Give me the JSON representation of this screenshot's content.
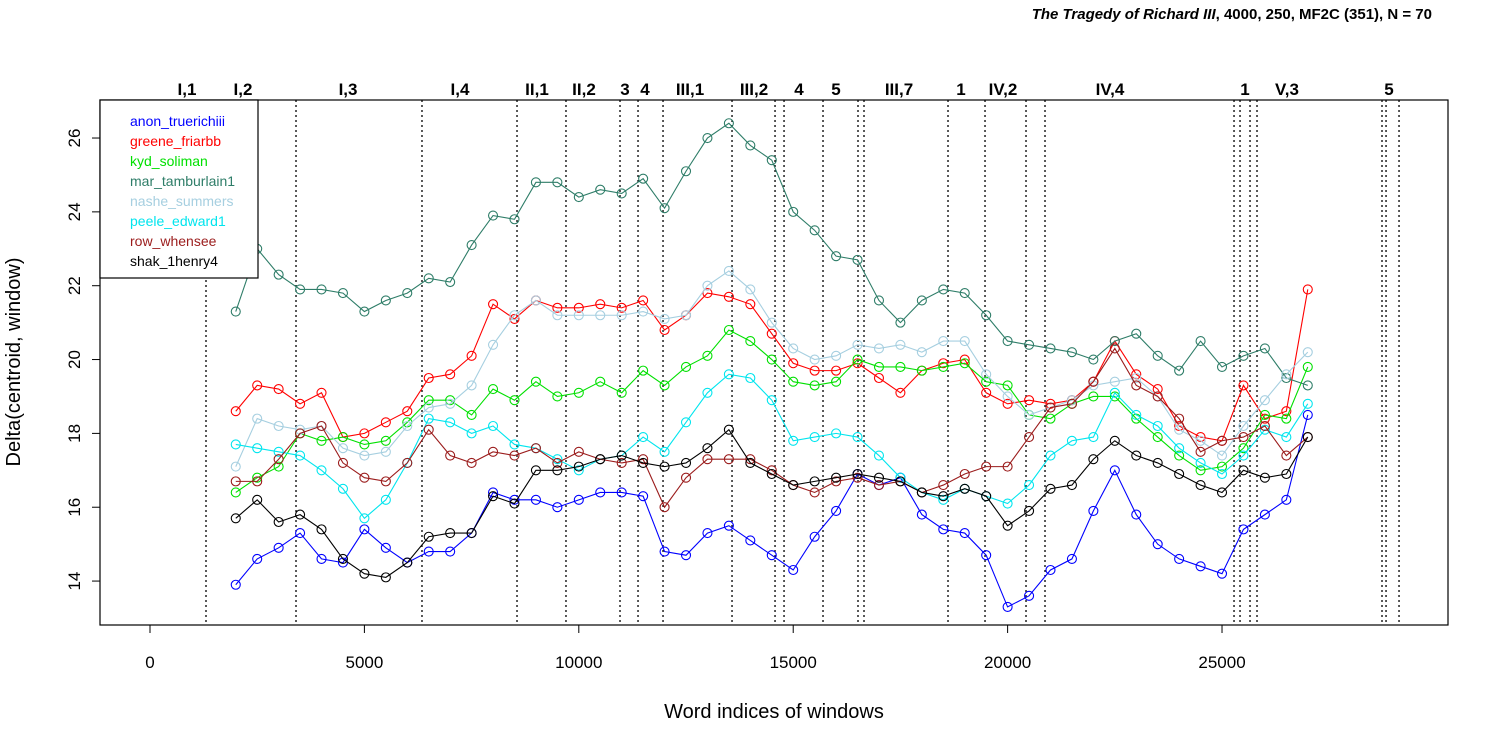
{
  "chart_data": {
    "type": "line",
    "title": {
      "italic": "The Tragedy of Richard III",
      "rest": ", 4000, 250, MF2C (351), N = 70"
    },
    "x_label": "Word indices of windows",
    "y_label": "Delta(centroid, window)",
    "xlim": [
      -1166,
      30270
    ],
    "ylim": [
      12.81,
      27.03
    ],
    "xticks": [
      0,
      5000,
      10000,
      15000,
      20000,
      25000
    ],
    "yticks": [
      14,
      16,
      18,
      20,
      22,
      24,
      26
    ],
    "legend": "top-left",
    "markers": "open-circle",
    "x": [
      2000,
      2500,
      3000,
      3500,
      4000,
      4500,
      5000,
      5500,
      6000,
      6500,
      7000,
      7500,
      8000,
      8500,
      9000,
      9500,
      10000,
      10500,
      11000,
      11500,
      12000,
      12500,
      13000,
      13500,
      14000,
      14500,
      15000,
      15500,
      16000,
      16500,
      17000,
      17500,
      18000,
      18500,
      19000,
      19500,
      20000,
      20500,
      21000,
      21500,
      22000,
      22500,
      23000,
      23500,
      24000,
      24500,
      25000,
      25500,
      26000,
      26500,
      27000
    ],
    "series": [
      {
        "name": "anon_truerichiii",
        "color": "#0000ff",
        "values": [
          13.9,
          14.6,
          14.9,
          15.3,
          14.6,
          14.5,
          15.4,
          14.9,
          14.5,
          14.8,
          14.8,
          15.3,
          16.4,
          16.2,
          16.2,
          16.0,
          16.2,
          16.4,
          16.4,
          16.3,
          14.8,
          14.7,
          15.3,
          15.5,
          15.1,
          14.7,
          14.3,
          15.2,
          15.9,
          16.9,
          16.6,
          16.8,
          15.8,
          15.4,
          15.3,
          14.7,
          13.3,
          13.6,
          14.3,
          14.6,
          15.9,
          17.0,
          15.8,
          15.0,
          14.6,
          14.4,
          14.2,
          15.4,
          15.8,
          16.2,
          18.5
        ]
      },
      {
        "name": "greene_friarbb",
        "color": "#ff0000",
        "values": [
          18.6,
          19.3,
          19.2,
          18.8,
          19.1,
          17.9,
          18.0,
          18.3,
          18.6,
          19.5,
          19.6,
          20.1,
          21.5,
          21.1,
          21.6,
          21.4,
          21.4,
          21.5,
          21.4,
          21.6,
          20.8,
          21.2,
          21.8,
          21.7,
          21.5,
          20.7,
          19.9,
          19.7,
          19.7,
          19.9,
          19.5,
          19.1,
          19.7,
          19.9,
          20.0,
          19.1,
          18.8,
          18.9,
          18.8,
          18.9,
          19.4,
          20.5,
          19.6,
          19.2,
          18.2,
          17.9,
          17.8,
          19.3,
          18.4,
          18.6,
          21.9
        ]
      },
      {
        "name": "kyd_soliman",
        "color": "#00e000",
        "values": [
          16.4,
          16.8,
          17.1,
          18.0,
          17.8,
          17.9,
          17.7,
          17.8,
          18.3,
          18.9,
          18.9,
          18.5,
          19.2,
          18.9,
          19.4,
          19.0,
          19.1,
          19.4,
          19.1,
          19.7,
          19.3,
          19.8,
          20.1,
          20.8,
          20.5,
          20.0,
          19.4,
          19.3,
          19.4,
          20.0,
          19.8,
          19.8,
          19.7,
          19.8,
          19.9,
          19.4,
          19.3,
          18.5,
          18.4,
          18.8,
          19.0,
          19.0,
          18.4,
          17.9,
          17.4,
          17.0,
          17.1,
          17.6,
          18.5,
          18.4,
          19.8
        ]
      },
      {
        "name": "mar_tamburlain1",
        "color": "#2e7d68",
        "values": [
          21.3,
          23.0,
          22.3,
          21.9,
          21.9,
          21.8,
          21.3,
          21.6,
          21.8,
          22.2,
          22.1,
          23.1,
          23.9,
          23.8,
          24.8,
          24.8,
          24.4,
          24.6,
          24.5,
          24.9,
          24.1,
          25.1,
          26.0,
          26.4,
          25.8,
          25.4,
          24.0,
          23.5,
          22.8,
          22.7,
          21.6,
          21.0,
          21.6,
          21.9,
          21.8,
          21.2,
          20.5,
          20.4,
          20.3,
          20.2,
          20.0,
          20.5,
          20.7,
          20.1,
          19.7,
          20.5,
          19.8,
          20.1,
          20.3,
          19.5,
          19.3
        ]
      },
      {
        "name": "nashe_summers",
        "color": "#a6cfe0",
        "values": [
          17.1,
          18.4,
          18.2,
          18.1,
          18.2,
          17.6,
          17.4,
          17.5,
          18.2,
          18.7,
          18.8,
          19.3,
          20.4,
          21.2,
          21.6,
          21.2,
          21.2,
          21.2,
          21.2,
          21.3,
          21.1,
          21.2,
          22.0,
          22.4,
          21.9,
          21.0,
          20.3,
          20.0,
          20.1,
          20.4,
          20.3,
          20.4,
          20.2,
          20.5,
          20.5,
          19.6,
          19.0,
          18.5,
          18.7,
          18.9,
          19.3,
          19.4,
          19.5,
          19.0,
          18.1,
          17.8,
          17.4,
          18.2,
          18.9,
          19.6,
          20.2
        ]
      },
      {
        "name": "peele_edward1",
        "color": "#00e5ee",
        "values": [
          17.7,
          17.6,
          17.5,
          17.4,
          17.0,
          16.5,
          15.7,
          16.2,
          17.2,
          18.4,
          18.3,
          18.0,
          18.2,
          17.7,
          17.6,
          17.3,
          17.0,
          17.3,
          17.4,
          17.9,
          17.5,
          18.3,
          19.1,
          19.6,
          19.5,
          18.9,
          17.8,
          17.9,
          18.0,
          17.9,
          17.4,
          16.8,
          16.4,
          16.2,
          16.5,
          16.3,
          16.1,
          16.6,
          17.4,
          17.8,
          17.9,
          19.1,
          18.5,
          18.2,
          17.6,
          17.2,
          16.9,
          17.4,
          18.1,
          17.9,
          18.8
        ]
      },
      {
        "name": "row_whensee",
        "color": "#9b1c1c",
        "values": [
          16.7,
          16.7,
          17.3,
          18.0,
          18.2,
          17.2,
          16.8,
          16.7,
          17.2,
          18.1,
          17.4,
          17.2,
          17.5,
          17.4,
          17.6,
          17.2,
          17.5,
          17.3,
          17.2,
          17.3,
          16.0,
          16.8,
          17.3,
          17.3,
          17.3,
          17.0,
          16.6,
          16.4,
          16.7,
          16.8,
          16.6,
          16.7,
          16.4,
          16.6,
          16.9,
          17.1,
          17.1,
          17.9,
          18.7,
          18.8,
          19.4,
          20.3,
          19.3,
          19.0,
          18.4,
          17.5,
          17.8,
          17.9,
          18.2,
          17.4,
          17.9
        ]
      },
      {
        "name": "shak_1henry4",
        "color": "#000000",
        "values": [
          15.7,
          16.2,
          15.6,
          15.8,
          15.4,
          14.6,
          14.2,
          14.1,
          14.5,
          15.2,
          15.3,
          15.3,
          16.3,
          16.1,
          17.0,
          17.0,
          17.1,
          17.3,
          17.4,
          17.2,
          17.1,
          17.2,
          17.6,
          18.1,
          17.2,
          16.9,
          16.6,
          16.7,
          16.8,
          16.9,
          16.8,
          16.7,
          16.4,
          16.3,
          16.5,
          16.3,
          15.5,
          15.9,
          16.5,
          16.6,
          17.3,
          17.8,
          17.4,
          17.2,
          16.9,
          16.6,
          16.4,
          17.0,
          16.8,
          16.9,
          17.9
        ]
      }
    ],
    "scene_boundaries": [
      1306,
      3405,
      6343,
      8559,
      9701,
      10961,
      11381,
      11964,
      13573,
      14576,
      14786,
      15695,
      16511,
      16651,
      18610,
      19473,
      20429,
      20872,
      25280,
      25420,
      25653,
      25816,
      28731,
      28825,
      29128
    ],
    "scene_labels": [
      {
        "label": "I,1",
        "x": 863
      },
      {
        "label": "I,2",
        "x": 2169
      },
      {
        "label": "I,3",
        "x": 4618
      },
      {
        "label": "I,4",
        "x": 7229
      },
      {
        "label": "II,1",
        "x": 9025
      },
      {
        "label": "II,2",
        "x": 10121
      },
      {
        "label": "3",
        "x": 11077
      },
      {
        "label": "4",
        "x": 11544
      },
      {
        "label": "III,1",
        "x": 12593
      },
      {
        "label": "III,2",
        "x": 14086
      },
      {
        "label": "4",
        "x": 15135
      },
      {
        "label": "5",
        "x": 15998
      },
      {
        "label": "III,7",
        "x": 17467
      },
      {
        "label": "1",
        "x": 18913
      },
      {
        "label": "IV,2",
        "x": 19893
      },
      {
        "label": "IV,4",
        "x": 22388
      },
      {
        "label": "1",
        "x": 25536
      },
      {
        "label": "V,3",
        "x": 26516
      },
      {
        "label": "5",
        "x": 28895
      }
    ]
  }
}
